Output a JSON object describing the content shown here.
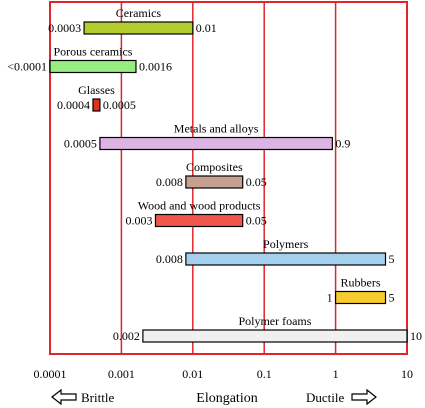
{
  "chart_data": {
    "type": "bar",
    "orientation": "horizontal-range",
    "x_scale": "log",
    "xlim": [
      0.0001,
      10
    ],
    "xlabel": "Elongation",
    "x_ticks": [
      "0.0001",
      "0.001",
      "0.01",
      "0.1",
      "1",
      "10"
    ],
    "direction_labels": {
      "left": "Brittle",
      "right": "Ductile"
    },
    "grid": "vertical",
    "frame_color": "#e0262b",
    "series": [
      {
        "name": "Ceramics",
        "min": 0.0003,
        "max": 0.01,
        "min_label": "0.0003",
        "max_label": "0.01",
        "color": "#b5cc2e"
      },
      {
        "name": "Porous ceramics",
        "min": 0.0001,
        "max": 0.0016,
        "min_label": "<0.0001",
        "max_label": "0.0016",
        "color": "#96ee80"
      },
      {
        "name": "Glasses",
        "min": 0.0004,
        "max": 0.0005,
        "min_label": "0.0004",
        "max_label": "0.0005",
        "color": "#e0321e"
      },
      {
        "name": "Metals and alloys",
        "min": 0.0005,
        "max": 0.9,
        "min_label": "0.0005",
        "max_label": "0.9",
        "color": "#dcb4e4"
      },
      {
        "name": "Composites",
        "min": 0.008,
        "max": 0.05,
        "min_label": "0.008",
        "max_label": "0.05",
        "color": "#c8a092"
      },
      {
        "name": "Wood and wood products",
        "min": 0.003,
        "max": 0.05,
        "min_label": "0.003",
        "max_label": "0.05",
        "color": "#f0574a"
      },
      {
        "name": "Polymers",
        "min": 0.008,
        "max": 5,
        "min_label": "0.008",
        "max_label": "5",
        "color": "#a4d0ec"
      },
      {
        "name": "Rubbers",
        "min": 1,
        "max": 5,
        "min_label": "1",
        "max_label": "5",
        "color": "#f6cc2c"
      },
      {
        "name": "Polymer foams",
        "min": 0.002,
        "max": 10,
        "min_label": "0.002",
        "max_label": "10",
        "color": "#f0f0f0"
      }
    ]
  }
}
